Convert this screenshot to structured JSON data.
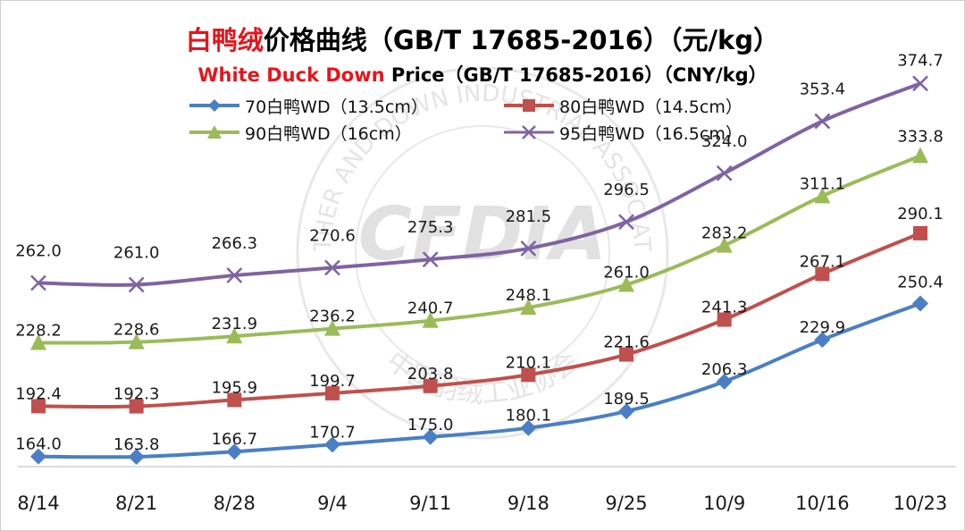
{
  "title": {
    "cn_highlight": "白鸭绒",
    "cn_rest": "价格曲线（GB/T 17685-2016）（元/kg）",
    "en_highlight": "White Duck Down",
    "en_rest": " Price（GB/T 17685-2016）（CNY/kg）"
  },
  "watermark": {
    "logo_text": "CFDIA",
    "ring_text_en": "FEATHER AND DOWN INDUSTRIAL ASSOCIATION",
    "ring_text_cn": "中国羽绒工业协会"
  },
  "colors": {
    "s70": "#4a7fc5",
    "s80": "#c0504d",
    "s90": "#9bbb59",
    "s95": "#7f63a2",
    "accent_red": "#e8141b"
  },
  "chart_data": {
    "type": "line",
    "title": "白鸭绒价格曲线（GB/T 17685-2016）（元/kg）",
    "subtitle": "White Duck Down Price（GB/T 17685-2016）（CNY/kg）",
    "xlabel": "",
    "ylabel": "",
    "categories": [
      "8/14",
      "8/21",
      "8/28",
      "9/4",
      "9/11",
      "9/18",
      "9/25",
      "10/9",
      "10/16",
      "10/23"
    ],
    "ylim": [
      100,
      400
    ],
    "grid": false,
    "legend_position": "top",
    "series": [
      {
        "name": "70白鸭WD（13.5cm）",
        "marker": "diamond",
        "values": [
          164.0,
          163.8,
          166.7,
          170.7,
          175.0,
          180.1,
          189.5,
          206.3,
          229.9,
          250.4
        ]
      },
      {
        "name": "80白鸭WD（14.5cm）",
        "marker": "square",
        "values": [
          192.4,
          192.3,
          195.9,
          199.7,
          203.8,
          210.1,
          221.6,
          241.3,
          267.1,
          290.1
        ]
      },
      {
        "name": "90白鸭WD（16cm）",
        "marker": "triangle",
        "values": [
          228.2,
          228.6,
          231.9,
          236.2,
          240.7,
          248.1,
          261.0,
          283.2,
          311.1,
          333.8
        ]
      },
      {
        "name": "95白鸭WD（16.5cm）",
        "marker": "x",
        "values": [
          262.0,
          261.0,
          266.3,
          270.6,
          275.3,
          281.5,
          296.5,
          324.0,
          353.4,
          374.7
        ]
      }
    ]
  }
}
